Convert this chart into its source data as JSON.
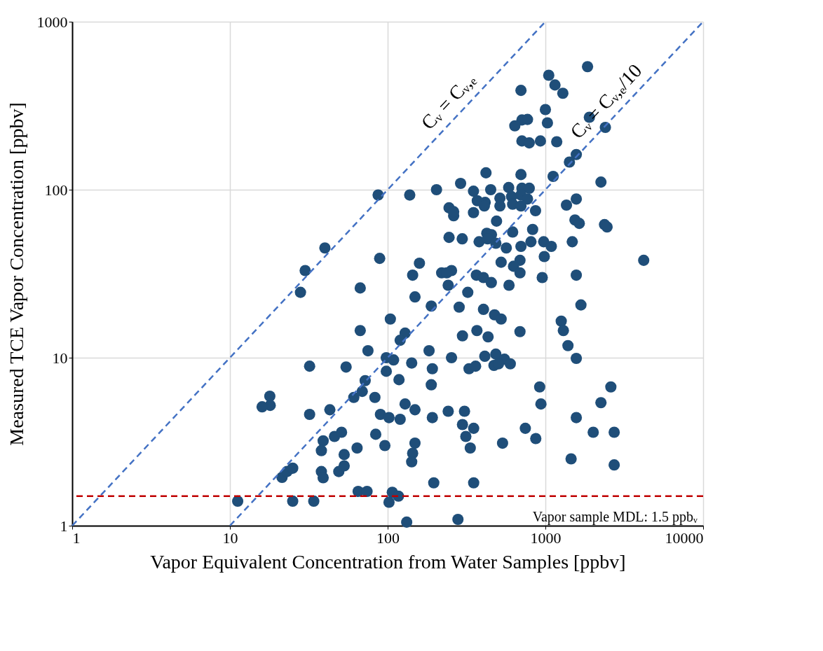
{
  "chart_data": {
    "type": "scatter",
    "xlabel": "Vapor Equivalent Concentration from Water Samples [ppbv]",
    "ylabel": "Measured TCE Vapor Concentration [ppbv]",
    "log": "xy",
    "xlim": [
      1,
      10000
    ],
    "ylim": [
      1,
      1000
    ],
    "xticks": [
      1,
      10,
      100,
      1000,
      10000
    ],
    "yticks": [
      1,
      10,
      100,
      1000
    ],
    "grid": true,
    "legend": false,
    "ref_lines": [
      {
        "axis": "y",
        "value": 1.5,
        "label": "Vapor sample MDL: 1.5 ppbᵥ",
        "color": "#c00000",
        "line_style": "dashed"
      }
    ],
    "series": [
      {
        "color": "#1f4e79",
        "marker": "circle",
        "x": [
          1850,
          1050,
          1150,
          1290,
          700,
          1000,
          1900,
          1030,
          710,
          770,
          640,
          710,
          790,
          930,
          1180,
          2400,
          1570,
          1420,
          1120,
          2250,
          420,
          700,
          290,
          87,
          138,
          204,
          350,
          450,
          585,
          710,
          790,
          700,
          770,
          610,
          515,
          370,
          415,
          410,
          515,
          620,
          700,
          245,
          262,
          262,
          350,
          866,
          490,
          1360,
          1570,
          1540,
          1640,
          2370,
          2460,
          620,
          830,
          245,
          297,
          380,
          425,
          455,
          430,
          485,
          565,
          700,
          810,
          975,
          1090,
          1480,
          40,
          89,
          30,
          28,
          159,
          144,
          220,
          254,
          237,
          365,
          405,
          454,
          242,
          588,
          67,
          322,
          524,
          690,
          984,
          628,
          690,
          955,
          1570,
          1680,
          149,
          189,
          284,
          405,
          476,
          524,
          104,
          1260,
          1300,
          1390,
          1570,
          67,
          129,
          120,
          298,
          368,
          433,
          690,
          75,
          183,
          254,
          98,
          109,
          142,
          192,
          98,
          118,
          189,
          413,
          485,
          550,
          599,
          472,
          504,
          328,
          361,
          32,
          54.5,
          920,
          2600,
          17.9,
          61,
          69,
          72,
          83,
          18,
          16,
          32,
          43,
          90,
          102,
          120,
          129,
          149,
          192,
          242,
          307,
          298,
          351,
          313,
          334,
          535,
          746,
          869,
          937,
          1570,
          2250,
          2010,
          2730,
          1455,
          2730,
          84,
          96,
          64,
          149,
          144,
          142,
          39,
          38,
          46,
          51,
          53,
          38,
          39,
          49,
          53,
          21.4,
          23,
          25,
          196,
          351,
          65,
          74,
          107,
          117,
          11.2,
          25,
          34,
          102,
          132,
          279,
          4200
        ],
        "values": [
          540,
          480,
          420,
          375,
          390,
          300,
          270,
          250,
          260,
          262,
          240,
          195,
          190,
          195,
          193,
          235,
          162,
          146,
          120,
          111,
          126,
          123,
          109,
          93,
          93,
          100,
          98,
          100,
          103,
          102,
          102,
          93,
          88,
          91,
          89,
          86,
          84,
          80,
          80,
          82,
          80,
          78,
          70,
          74,
          73,
          75,
          65,
          81,
          88,
          66,
          63,
          62,
          60,
          56,
          58,
          52,
          51,
          49,
          55,
          54,
          51,
          48,
          45,
          46,
          49,
          49,
          46,
          49,
          45,
          39,
          33,
          24.5,
          36.5,
          31,
          32,
          33,
          32,
          31,
          30,
          28,
          27,
          27,
          26,
          24.5,
          37,
          38,
          40,
          35,
          32,
          30,
          31,
          20.6,
          23,
          20.3,
          20,
          19.4,
          18,
          17,
          17,
          16.5,
          14.5,
          11.8,
          9.9,
          14.5,
          14,
          12.7,
          13.5,
          14.5,
          13.3,
          14.3,
          11,
          11,
          10,
          10,
          9.7,
          9.3,
          8.6,
          8.3,
          7.4,
          6.9,
          10.2,
          10.5,
          9.8,
          9.2,
          9,
          9.2,
          8.6,
          8.9,
          8.9,
          8.8,
          6.7,
          6.7,
          5.9,
          5.8,
          6.3,
          7.3,
          5.8,
          5.2,
          5.1,
          4.6,
          4.9,
          4.6,
          4.4,
          4.3,
          5.3,
          4.9,
          4.4,
          4.8,
          4.8,
          4,
          3.8,
          3.4,
          2.9,
          3.1,
          3.8,
          3.3,
          5.3,
          4.4,
          5.4,
          3.6,
          3.6,
          2.5,
          2.3,
          3.5,
          3,
          2.9,
          3.1,
          2.7,
          2.4,
          3.2,
          2.8,
          3.4,
          3.6,
          2.65,
          2.1,
          1.93,
          2.1,
          2.27,
          1.94,
          2.1,
          2.2,
          1.8,
          1.8,
          1.6,
          1.6,
          1.58,
          1.5,
          1.4,
          1.4,
          1.4,
          1.38,
          1.05,
          1.09,
          38
        ]
      },
      {
        "type": "line",
        "name": "Cᵥ = Cᵥ,ₑ",
        "color": "#4472c4",
        "line_style": "dashed",
        "x": [
          1,
          1000
        ],
        "values": [
          1,
          1000
        ]
      },
      {
        "type": "line",
        "name": "Cᵥ = Cᵥ,ₑ/10",
        "color": "#4472c4",
        "line_style": "dashed",
        "x": [
          10,
          10000
        ],
        "values": [
          1,
          1000
        ]
      }
    ]
  }
}
